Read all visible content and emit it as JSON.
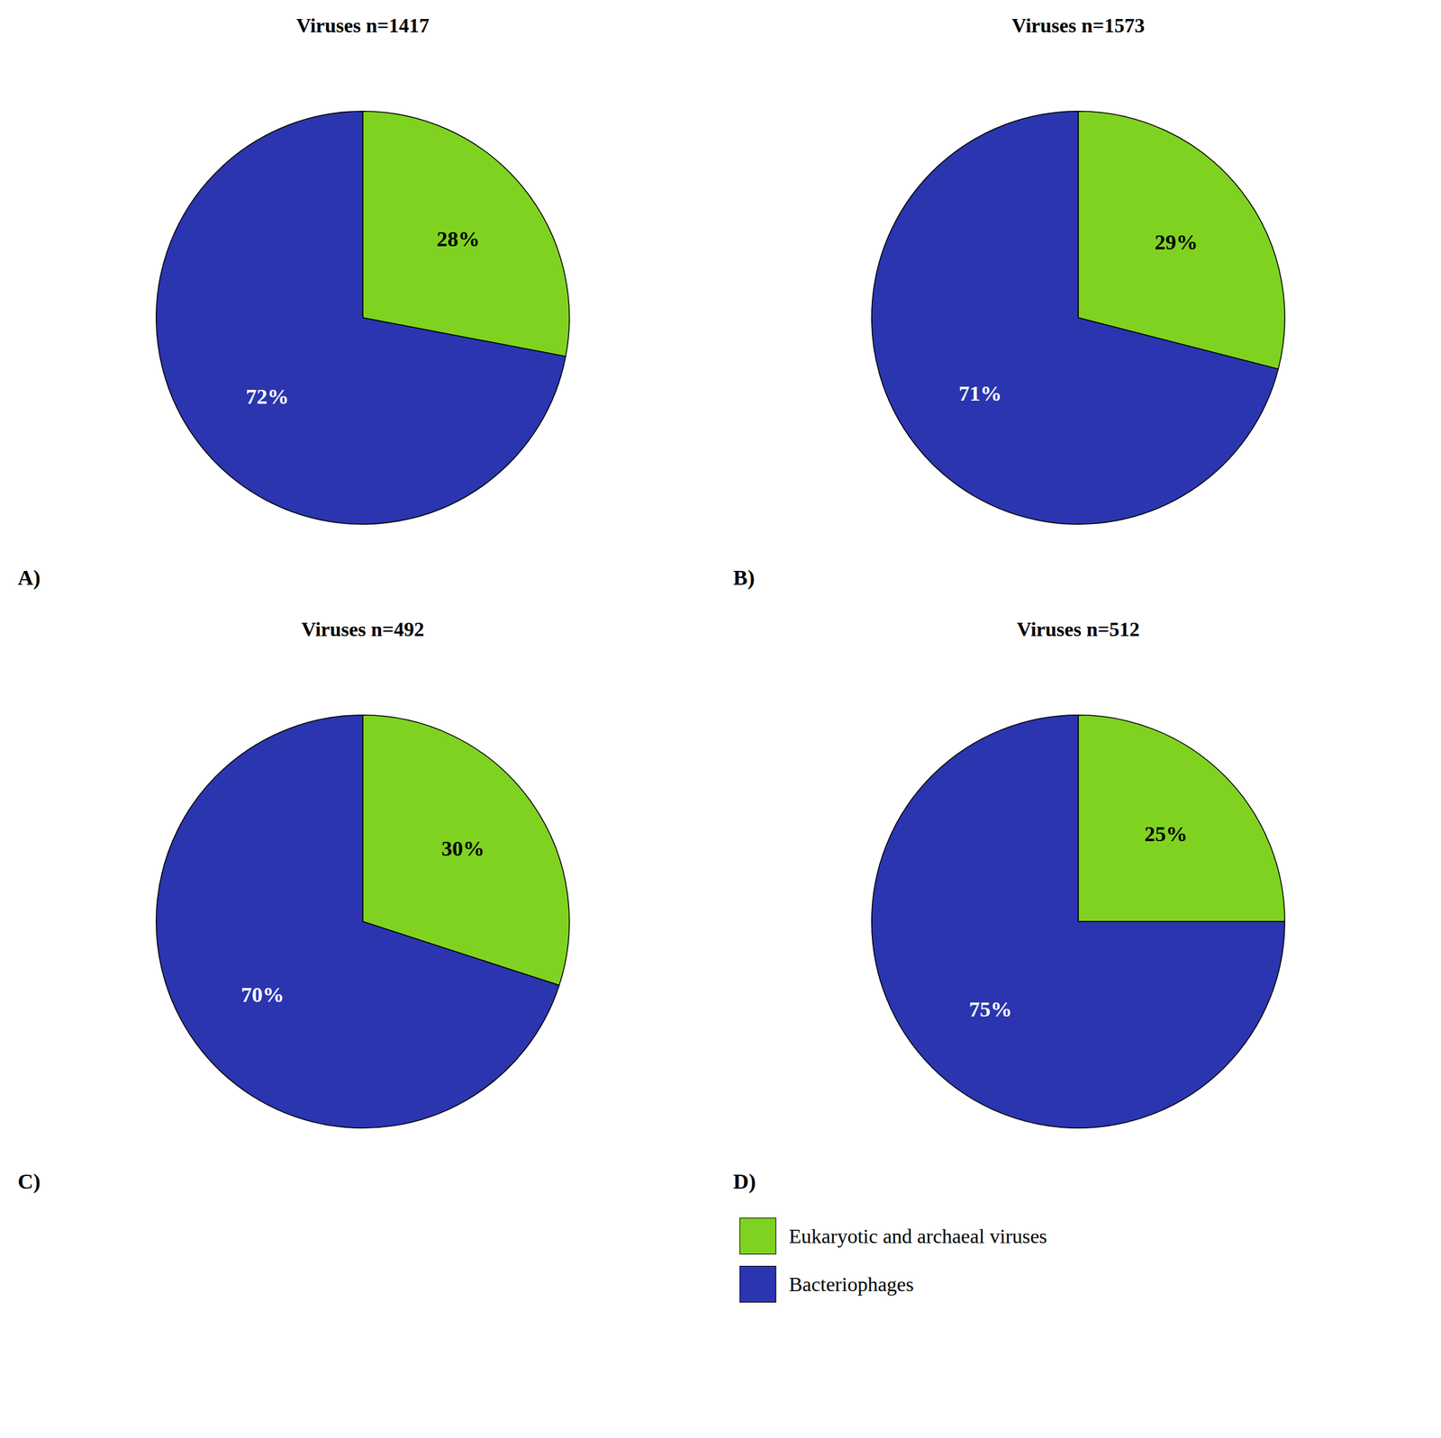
{
  "chart_data": [
    {
      "type": "pie",
      "title": "Viruses n=1417",
      "annotations": [
        "A)"
      ],
      "categories": [
        "Eukaryotic and archaeal viruses",
        "Bacteriophages"
      ],
      "values": [
        28,
        72
      ],
      "value_labels": [
        "28%",
        "72%"
      ],
      "colors": [
        "#7FD320",
        "#2B35AF"
      ],
      "data_labels": true
    },
    {
      "type": "pie",
      "title": "Viruses n=1573",
      "annotations": [
        "B)"
      ],
      "categories": [
        "Eukaryotic and archaeal viruses",
        "Bacteriophages"
      ],
      "values": [
        29,
        71
      ],
      "value_labels": [
        "29%",
        "71%"
      ],
      "colors": [
        "#7FD320",
        "#2B35AF"
      ],
      "data_labels": true
    },
    {
      "type": "pie",
      "title": "Viruses n=492",
      "annotations": [
        "C)"
      ],
      "categories": [
        "Eukaryotic and archaeal viruses",
        "Bacteriophages"
      ],
      "values": [
        30,
        70
      ],
      "value_labels": [
        "30%",
        "70%"
      ],
      "colors": [
        "#7FD320",
        "#2B35AF"
      ],
      "data_labels": true
    },
    {
      "type": "pie",
      "title": "Viruses n=512",
      "annotations": [
        "D)"
      ],
      "categories": [
        "Eukaryotic and archaeal viruses",
        "Bacteriophages"
      ],
      "values": [
        25,
        75
      ],
      "value_labels": [
        "25%",
        "75%"
      ],
      "colors": [
        "#7FD320",
        "#2B35AF"
      ],
      "data_labels": true,
      "legend": "lower right"
    }
  ]
}
